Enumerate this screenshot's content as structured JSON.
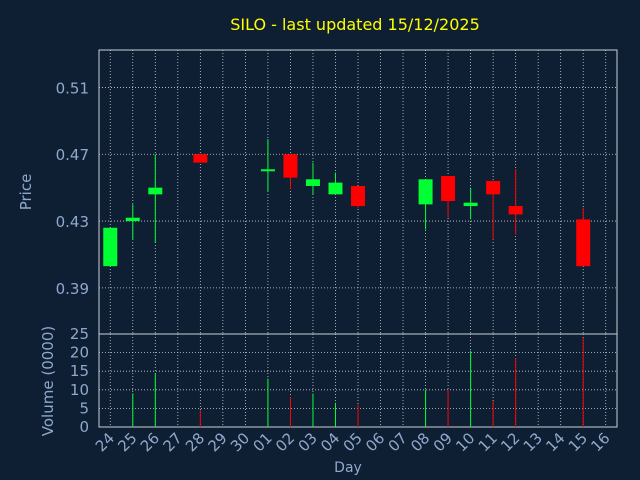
{
  "chart_data": {
    "type": "candlestick",
    "title": "SILO - last updated 15/12/2025",
    "xlabel": "Day",
    "price_panel": {
      "ylabel": "Price",
      "yticks": [
        "0.51",
        "0.47",
        "0.43",
        "0.39"
      ],
      "ylim": [
        0.3624,
        0.5324
      ]
    },
    "volume_panel": {
      "ylabel": "Volume (0000)",
      "yticks": [
        "25",
        "20",
        "15",
        "10",
        "5",
        "0"
      ],
      "ylim": [
        0,
        25
      ]
    },
    "x_tick_labels": [
      "24",
      "25",
      "26",
      "27",
      "28",
      "29",
      "30",
      "01",
      "02",
      "03",
      "04",
      "05",
      "06",
      "07",
      "08",
      "09",
      "10",
      "11",
      "12",
      "13",
      "14",
      "15",
      "16"
    ],
    "candles": [
      {
        "x": "24",
        "open": 0.403,
        "high": 0.426,
        "low": 0.403,
        "close": 0.426
      },
      {
        "x": "25",
        "open": 0.43,
        "high": 0.44,
        "low": 0.419,
        "close": 0.432
      },
      {
        "x": "26",
        "open": 0.446,
        "high": 0.47,
        "low": 0.417,
        "close": 0.45
      },
      {
        "x": "28",
        "open": 0.47,
        "high": 0.47,
        "low": 0.465,
        "close": 0.465
      },
      {
        "x": "01",
        "open": 0.46,
        "high": 0.479,
        "low": 0.448,
        "close": 0.461
      },
      {
        "x": "02",
        "open": 0.47,
        "high": 0.47,
        "low": 0.449,
        "close": 0.456
      },
      {
        "x": "03",
        "open": 0.451,
        "high": 0.465,
        "low": 0.446,
        "close": 0.455
      },
      {
        "x": "04",
        "open": 0.446,
        "high": 0.459,
        "low": 0.446,
        "close": 0.453
      },
      {
        "x": "05",
        "open": 0.451,
        "high": 0.451,
        "low": 0.438,
        "close": 0.439
      },
      {
        "x": "08",
        "open": 0.44,
        "high": 0.455,
        "low": 0.425,
        "close": 0.455
      },
      {
        "x": "09",
        "open": 0.457,
        "high": 0.457,
        "low": 0.432,
        "close": 0.442
      },
      {
        "x": "10",
        "open": 0.439,
        "high": 0.45,
        "low": 0.431,
        "close": 0.441
      },
      {
        "x": "11",
        "open": 0.454,
        "high": 0.454,
        "low": 0.419,
        "close": 0.446
      },
      {
        "x": "12",
        "open": 0.439,
        "high": 0.461,
        "low": 0.422,
        "close": 0.434
      },
      {
        "x": "15",
        "open": 0.431,
        "high": 0.438,
        "low": 0.403,
        "close": 0.403
      }
    ],
    "volume": [
      {
        "x": "24",
        "value": 0,
        "direction": "up"
      },
      {
        "x": "25",
        "value": 9,
        "direction": "up"
      },
      {
        "x": "26",
        "value": 14.5,
        "direction": "up"
      },
      {
        "x": "28",
        "value": 4.5,
        "direction": "down"
      },
      {
        "x": "01",
        "value": 13,
        "direction": "up"
      },
      {
        "x": "02",
        "value": 8,
        "direction": "down"
      },
      {
        "x": "03",
        "value": 9,
        "direction": "up"
      },
      {
        "x": "04",
        "value": 6.5,
        "direction": "up"
      },
      {
        "x": "05",
        "value": 6,
        "direction": "down"
      },
      {
        "x": "08",
        "value": 10,
        "direction": "up"
      },
      {
        "x": "09",
        "value": 10,
        "direction": "down"
      },
      {
        "x": "10",
        "value": 20.5,
        "direction": "up"
      },
      {
        "x": "11",
        "value": 7,
        "direction": "down"
      },
      {
        "x": "12",
        "value": 18.5,
        "direction": "down"
      },
      {
        "x": "15",
        "value": 24,
        "direction": "down"
      }
    ],
    "colors": {
      "background": "#0f1f33",
      "up": "#00ff33",
      "down": "#ff0000",
      "title": "#ffff00",
      "axis_text": "#8fa9cc",
      "grid": "#c8d0d8"
    },
    "grid": true
  }
}
